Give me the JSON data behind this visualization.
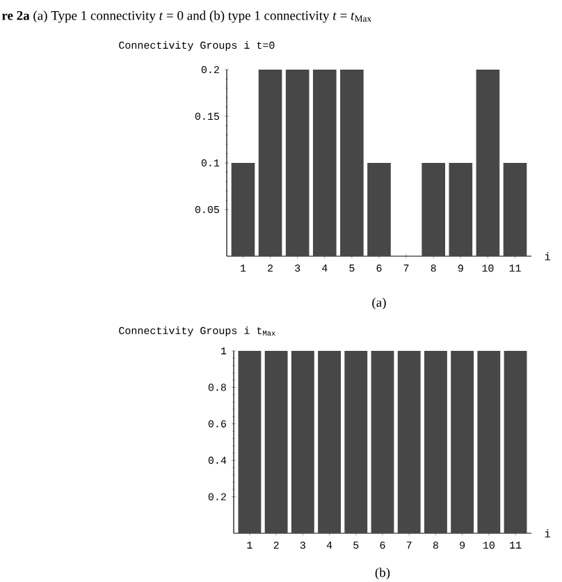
{
  "chart_data": [
    {
      "type": "bar",
      "title": "**re 2a** (a) Type 1 connectivity *t* = 0 and (b) type 1 connectivity *t* = *t*$_{Max}$",
      "ylabel": "Connectivity   Groups  i t=0",
      "xlabel": "i",
      "categories": [
        "1",
        "2",
        "3",
        "4",
        "5",
        "6",
        "7",
        "8",
        "9",
        "10",
        "11"
      ],
      "values": [
        0.1,
        0.2,
        0.2,
        0.2,
        0.2,
        0.1,
        0,
        0.1,
        0.1,
        0.2,
        0.1
      ],
      "color": "#474747",
      "ylim": [
        0,
        0.2
      ],
      "yticks": [
        0.05,
        0.1,
        0.15,
        0.2
      ],
      "annotations": [
        "(a)"
      ]
    },
    {
      "type": "bar",
      "ylabel": "Connectivity   Groups  i t$_{Max}$",
      "xlabel": "i",
      "categories": [
        "1",
        "2",
        "3",
        "4",
        "5",
        "6",
        "7",
        "8",
        "9",
        "10",
        "11"
      ],
      "values": [
        1,
        1,
        1,
        1,
        1,
        1,
        1,
        1,
        1,
        1,
        1
      ],
      "color": "#474747",
      "ylim": [
        0,
        1
      ],
      "yticks": [
        0.2,
        0.4,
        0.6,
        0.8,
        1
      ],
      "annotations": [
        "(b)"
      ]
    }
  ]
}
